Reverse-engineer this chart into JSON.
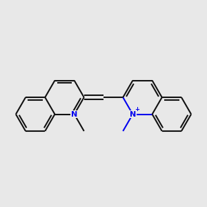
{
  "bg_color": "#e8e8e8",
  "bond_color": "#111111",
  "n_color": "#0000ee",
  "lw": 1.5,
  "dbo": 0.012,
  "figsize": [
    3.0,
    3.0
  ],
  "dpi": 100,
  "bl": 0.095
}
